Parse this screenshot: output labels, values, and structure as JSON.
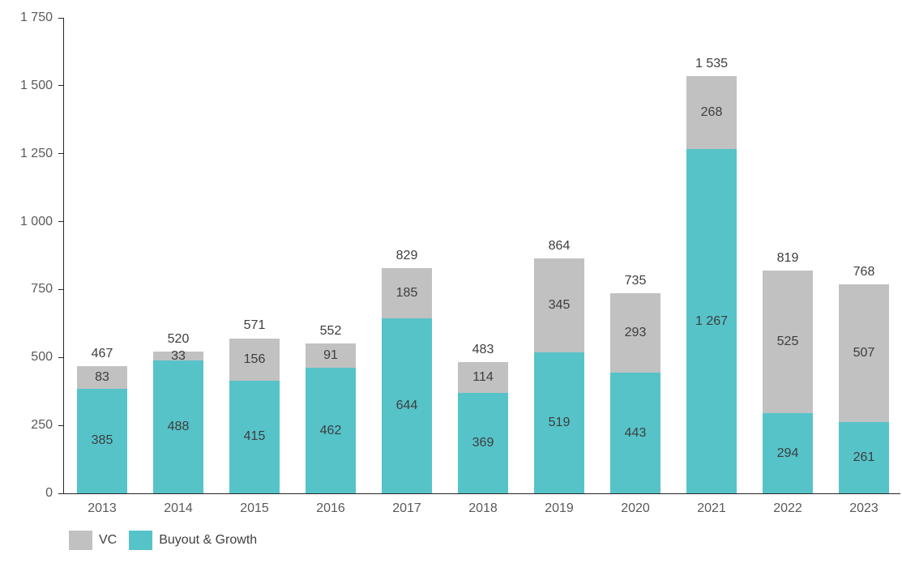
{
  "chart_data": {
    "type": "bar",
    "stacked": true,
    "title": "",
    "xlabel": "",
    "ylabel": "",
    "grid": false,
    "legend_position": "bottom-left",
    "ylim": [
      0,
      1750
    ],
    "y_ticks": [
      0,
      250,
      500,
      750,
      1000,
      1250,
      1500,
      1750
    ],
    "y_tick_labels": [
      "0",
      "250",
      "500",
      "750",
      "1 000",
      "1 250",
      "1 500",
      "1 750"
    ],
    "categories": [
      "2013",
      "2014",
      "2015",
      "2016",
      "2017",
      "2018",
      "2019",
      "2020",
      "2021",
      "2022",
      "2023"
    ],
    "series": [
      {
        "name": "Buyout & Growth",
        "color": "#56C3C9",
        "values": [
          385,
          488,
          415,
          462,
          644,
          369,
          519,
          443,
          1267,
          294,
          261
        ]
      },
      {
        "name": "VC",
        "color": "#C1C1C1",
        "values": [
          83,
          33,
          156,
          91,
          185,
          114,
          345,
          293,
          268,
          525,
          507
        ]
      }
    ],
    "totals": [
      467,
      520,
      571,
      552,
      829,
      483,
      864,
      735,
      1535,
      819,
      768
    ]
  },
  "legend": {
    "items": [
      {
        "label": "VC",
        "color": "#C1C1C1"
      },
      {
        "label": "Buyout & Growth",
        "color": "#56C3C9"
      }
    ]
  },
  "colors": {
    "axis": "#262626",
    "axis_text": "#595959",
    "value_text": "#3d3d3d"
  }
}
